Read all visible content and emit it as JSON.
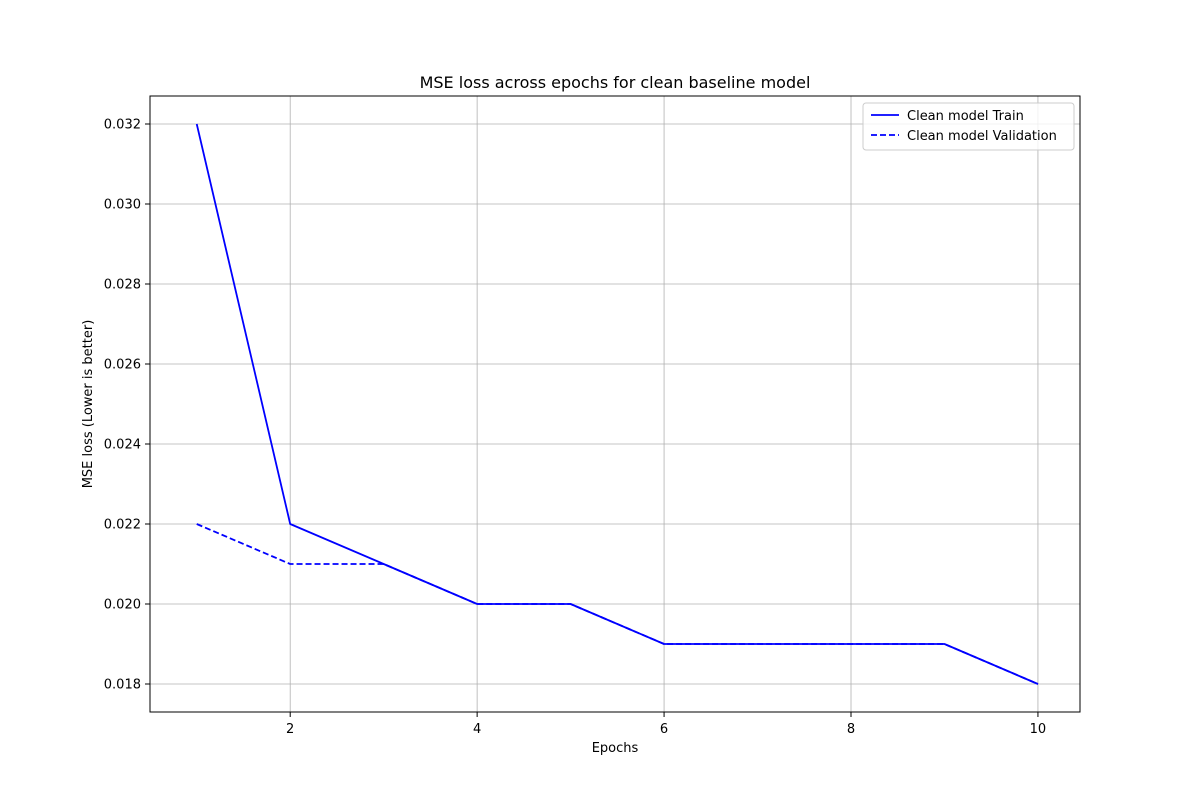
{
  "chart_data": {
    "type": "line",
    "title": "MSE loss across epochs for clean baseline model",
    "xlabel": "Epochs",
    "ylabel": "MSE loss (Lower is better)",
    "x": [
      1,
      2,
      3,
      4,
      5,
      6,
      7,
      8,
      9,
      10
    ],
    "xlim": [
      0.5,
      10.45
    ],
    "ylim": [
      0.0173,
      0.0327
    ],
    "xticks": [
      2,
      4,
      6,
      8,
      10
    ],
    "xtick_labels": [
      "2",
      "4",
      "6",
      "8",
      "10"
    ],
    "yticks": [
      0.018,
      0.02,
      0.022,
      0.024,
      0.026,
      0.028,
      0.03,
      0.032
    ],
    "ytick_labels": [
      "0.018",
      "0.020",
      "0.022",
      "0.024",
      "0.026",
      "0.028",
      "0.030",
      "0.032"
    ],
    "grid": true,
    "legend_position": "top-right",
    "series": [
      {
        "name": "Clean model Train",
        "values": [
          0.032,
          0.022,
          0.021,
          0.02,
          0.02,
          0.019,
          0.019,
          0.019,
          0.019,
          0.018
        ],
        "color": "#0000ff",
        "style": "solid"
      },
      {
        "name": "Clean model Validation",
        "values": [
          0.022,
          0.021,
          0.021,
          0.02,
          0.02,
          0.019,
          0.019,
          0.019,
          0.019,
          0.018
        ],
        "color": "#0000ff",
        "style": "dashed"
      }
    ]
  }
}
